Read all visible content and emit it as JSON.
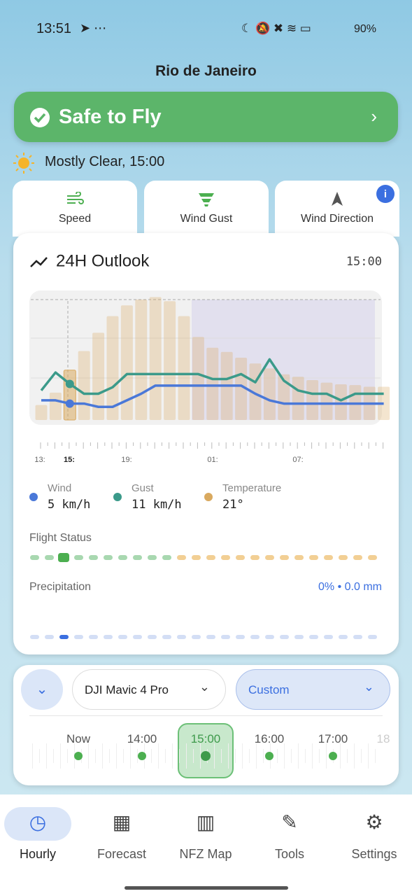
{
  "status_bar": {
    "time": "13:51",
    "battery": "90%"
  },
  "header": {
    "title": "Rio de Janeiro"
  },
  "banner": {
    "text": "Safe to Fly"
  },
  "weather": {
    "text": "Mostly Clear, 15:00"
  },
  "tabs": [
    "Speed",
    "Wind Gust",
    "Wind Direction"
  ],
  "outlook": {
    "title": "24H Outlook",
    "time": "15:00",
    "chart": {
      "temperature": [
        16.8,
        18.3,
        21,
        23.3,
        25.5,
        27.5,
        28.8,
        29.5,
        29.8,
        29.3,
        27.5,
        25,
        23.7,
        23.2,
        22.5,
        21.8,
        21.2,
        20.5,
        20.2,
        19.8,
        19.5,
        19.3,
        19.2,
        19,
        19
      ],
      "wind": [
        6,
        6,
        5,
        5,
        4,
        4,
        6,
        8,
        10.5,
        10.5,
        10.5,
        10.5,
        10.5,
        10.5,
        10.5,
        8,
        6,
        5,
        5,
        5,
        5,
        5,
        5,
        5,
        5
      ],
      "gust": [
        9,
        14.5,
        11,
        8,
        8,
        10,
        14,
        14,
        14,
        14,
        14,
        14,
        12.5,
        12.5,
        14,
        11.5,
        18.5,
        12,
        9,
        8,
        8,
        6,
        8,
        8,
        8
      ],
      "temperature_lim": [
        15,
        30
      ],
      "wind_lim": [
        0,
        38
      ],
      "colors": {
        "temperature": "#d9a95f",
        "wind": "#4a78d8",
        "gust": "#3b9a8a"
      }
    },
    "time_labels": [
      "13:",
      "15:",
      "19:",
      "01:",
      "07:"
    ],
    "legend": [
      {
        "name": "Wind",
        "value": "5 km/h"
      },
      {
        "name": "Gust",
        "value": "11 km/h"
      },
      {
        "name": "Temperature",
        "value": "21°"
      }
    ],
    "flight_status_label": "Flight Status",
    "precipitation_label": "Precipitation",
    "precipitation_value": "0% • 0.0 mm"
  },
  "controls": {
    "drone": "DJI Mavic 4 Pro",
    "mode": "Custom",
    "times": [
      "Now",
      "14:00",
      "15:00",
      "16:00",
      "17:00",
      "18"
    ]
  },
  "nav": [
    "Hourly",
    "Forecast",
    "NFZ Map",
    "Tools",
    "Settings"
  ]
}
